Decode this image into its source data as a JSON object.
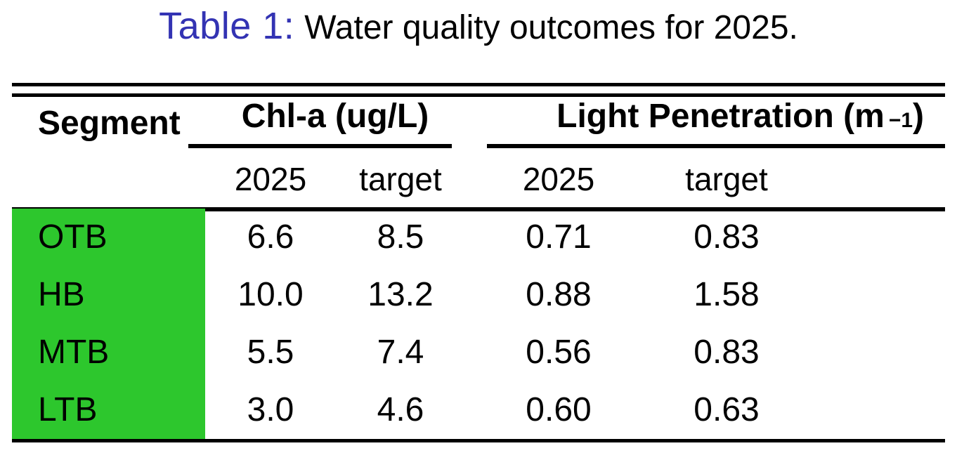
{
  "caption": {
    "label": "Table 1:",
    "text": "Water quality outcomes for 2025."
  },
  "colors": {
    "caption_accent": "#3333B3",
    "segment_highlight": "#2DC72D",
    "rule": "#000000",
    "background": "#FFFFFF"
  },
  "chart_data": {
    "type": "table",
    "title": "Table 1: Water quality outcomes for 2025.",
    "segment_header": "Segment",
    "column_groups": [
      {
        "label": "Chl-a (ug/L)",
        "columns": [
          "2025",
          "target"
        ]
      },
      {
        "label": "Light Penetration (m^-1)",
        "label_base": "Light Penetration (m",
        "label_sup": "−1",
        "label_suffix": ")",
        "columns": [
          "2025",
          "target"
        ]
      }
    ],
    "rows": [
      {
        "segment": "OTB",
        "values": [
          "6.6",
          "8.5",
          "0.71",
          "0.83"
        ]
      },
      {
        "segment": "HB",
        "values": [
          "10.0",
          "13.2",
          "0.88",
          "1.58"
        ]
      },
      {
        "segment": "MTB",
        "values": [
          "5.5",
          "7.4",
          "0.56",
          "0.83"
        ]
      },
      {
        "segment": "LTB",
        "values": [
          "3.0",
          "4.6",
          "0.60",
          "0.63"
        ]
      }
    ],
    "layout": {
      "grid": "off",
      "top_rule": "double",
      "group_underlines": true,
      "highlighted_column": "Segment"
    }
  }
}
